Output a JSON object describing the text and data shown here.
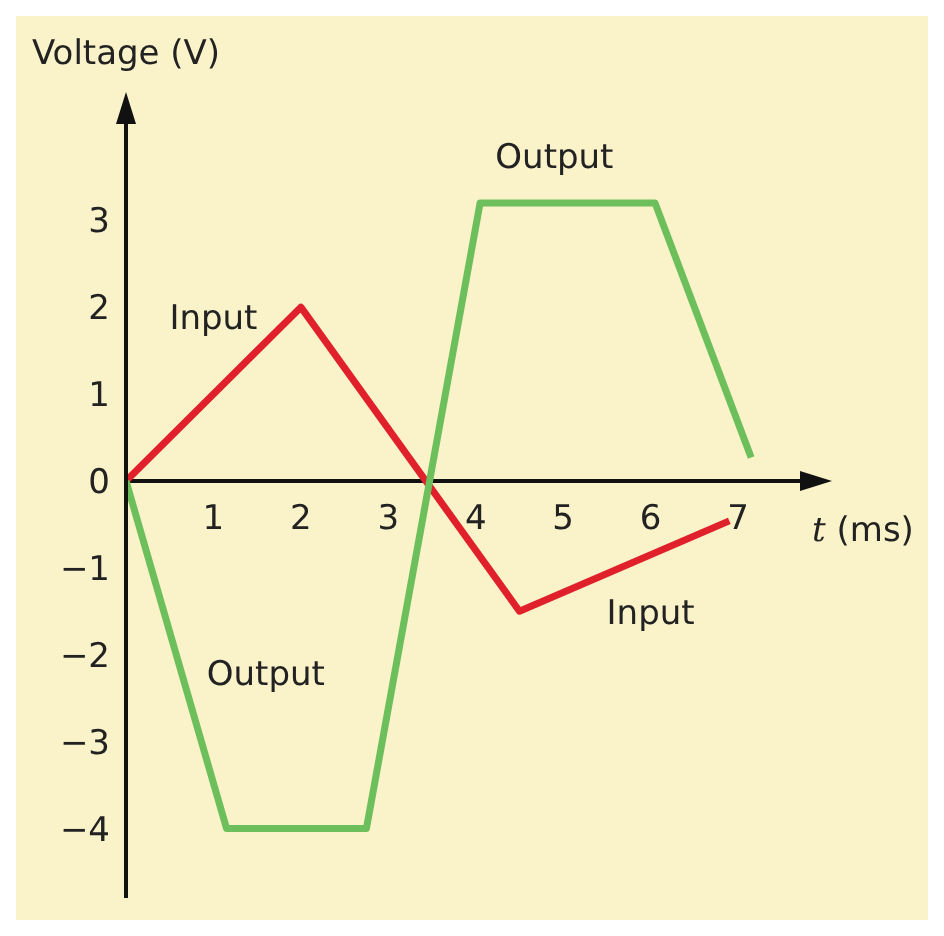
{
  "chart_data": {
    "type": "line",
    "xlabel": "t (ms)",
    "ylabel": "Voltage (V)",
    "xlim": [
      0,
      7.8
    ],
    "ylim": [
      -4.8,
      4.2
    ],
    "xticks": [
      1,
      2,
      3,
      4,
      5,
      6,
      7
    ],
    "yticks": [
      {
        "value": -4,
        "label": "−4"
      },
      {
        "value": -3,
        "label": "−3"
      },
      {
        "value": -2,
        "label": "−2"
      },
      {
        "value": -1,
        "label": "−1"
      },
      0,
      1,
      2,
      3
    ],
    "grid": false,
    "legend": false,
    "marker": "none",
    "line_style": "solid",
    "series": [
      {
        "name": "Input",
        "color": "#e0202a",
        "x": [
          0,
          2,
          4.5,
          6.9
        ],
        "values": [
          0,
          2,
          -1.5,
          -0.46
        ]
      },
      {
        "name": "Output",
        "color": "#6cbf5a",
        "x": [
          0,
          1.15,
          2.75,
          4.05,
          6.05,
          7.15
        ],
        "values": [
          0,
          -4,
          -4,
          3.2,
          3.2,
          0.27
        ]
      }
    ]
  }
}
